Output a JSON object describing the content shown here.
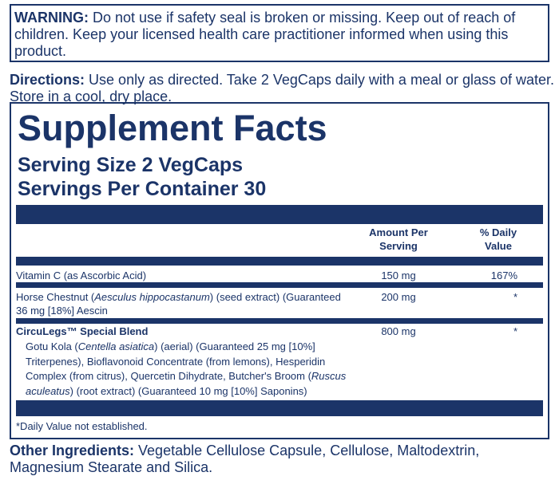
{
  "warning": {
    "label": "WARNING:",
    "lines": [
      "Do not use if safety seal is broken or missing. Keep out of reach of",
      "children. Keep your licensed health care practitioner informed when using this",
      "product."
    ]
  },
  "directions": {
    "label": "Directions:",
    "lines": [
      "Use only as directed. Take 2 VegCaps daily with a meal or glass of water.",
      "Store in a cool, dry place."
    ]
  },
  "facts": {
    "title": "Supplement Facts",
    "serving_size": "Serving Size 2 VegCaps",
    "servings_per_container": "Servings Per Container 30",
    "headers": {
      "amount": [
        "Amount Per",
        "Serving"
      ],
      "daily_value": [
        "% Daily",
        "Value"
      ]
    },
    "rows": [
      {
        "name": [
          [
            {
              "text": "Vitamin C (as Ascorbic Acid)"
            }
          ]
        ],
        "amount": "150 mg",
        "daily_value": "167%"
      },
      {
        "name": [
          [
            {
              "text": "Horse Chestnut ("
            },
            {
              "text": "Aesculus hippocastanum",
              "italic": true
            },
            {
              "text": ") (seed extract)  (Guaranteed"
            }
          ],
          [
            {
              "text": "36 mg [18%] Aescin"
            }
          ]
        ],
        "amount": "200 mg",
        "daily_value": "*"
      },
      {
        "name": [
          [
            {
              "text": "CircuLegs™ Special Blend"
            }
          ]
        ],
        "amount": "800 mg",
        "daily_value": "*",
        "detail": [
          [
            {
              "text": "Gotu Kola ("
            },
            {
              "text": "Centella asiatica",
              "italic": true
            },
            {
              "text": ") (aerial) (Guaranteed 25 mg [10%]"
            }
          ],
          [
            {
              "text": "Triterpenes), Bioflavonoid Concentrate (from lemons), Hesperidin"
            }
          ],
          [
            {
              "text": "Complex (from citrus), Quercetin Dihydrate, Butcher's Broom ("
            },
            {
              "text": "Ruscus",
              "italic": true
            }
          ],
          [
            {
              "text": "aculeatus",
              "italic": true
            },
            {
              "text": ") (root extract) (Guaranteed 10 mg [10%] Saponins)"
            }
          ]
        ]
      }
    ],
    "footnote": "*Daily Value not established."
  },
  "other_ingredients": {
    "label": "Other Ingredients:",
    "lines": [
      "Vegetable Cellulose Capsule, Cellulose, Maltodextrin,",
      "Magnesium Stearate and Silica."
    ]
  }
}
